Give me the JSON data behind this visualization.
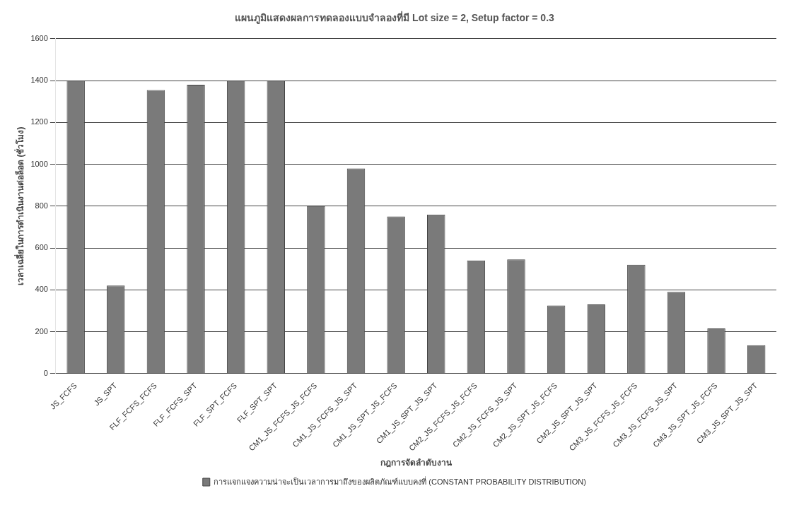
{
  "chart_data": {
    "type": "bar",
    "title": "แผนภูมิแสดงผลการทดลองแบบจำลองที่มี Lot size = 2, Setup factor = 0.3",
    "xlabel": "กฎการจัดลำดับงาน",
    "ylabel": "เวลาเฉลี่ยในการดำเนินงานต่อล็อต (ชั่วโมง)",
    "categories": [
      "JS_FCFS",
      "JS_SPT",
      "FLF_FCFS_FCFS",
      "FLF_FCFS_SPT",
      "FLF_SPT_FCFS",
      "FLF_SPT_SPT",
      "CM1_JS_FCFS_JS_FCFS",
      "CM1_JS_FCFS_JS_SPT",
      "CM1_JS_SPT_JS_FCFS",
      "CM1_JS_SPT_JS_SPT",
      "CM2_JS_FCFS_JS_FCFS",
      "CM2_JS_FCFS_JS_SPT",
      "CM2_JS_SPT_JS_FCFS",
      "CM2_JS_SPT_JS_SPT",
      "CM3_JS_FCFS_JS_FCFS",
      "CM3_JS_FCFS_JS_SPT",
      "CM3_JS_SPT_JS_FCFS",
      "CM3_JS_SPT_JS_SPT"
    ],
    "series": [
      {
        "name": "การแจกแจงความน่าจะเป็นเวลาการมาถึงของผลิตภัณฑ์แบบคงที่ (CONSTANT PROBABILITY DISTRIBUTION)",
        "color": "#7a7a7a",
        "values": [
          1400,
          420,
          1355,
          1380,
          1400,
          1400,
          800,
          980,
          750,
          760,
          540,
          545,
          325,
          330,
          520,
          390,
          215,
          135
        ]
      }
    ],
    "ylim": [
      0,
      1600
    ],
    "yticks": [
      0,
      200,
      400,
      600,
      800,
      1000,
      1200,
      1400,
      1600
    ],
    "grid": "y",
    "legend": "bottom"
  }
}
